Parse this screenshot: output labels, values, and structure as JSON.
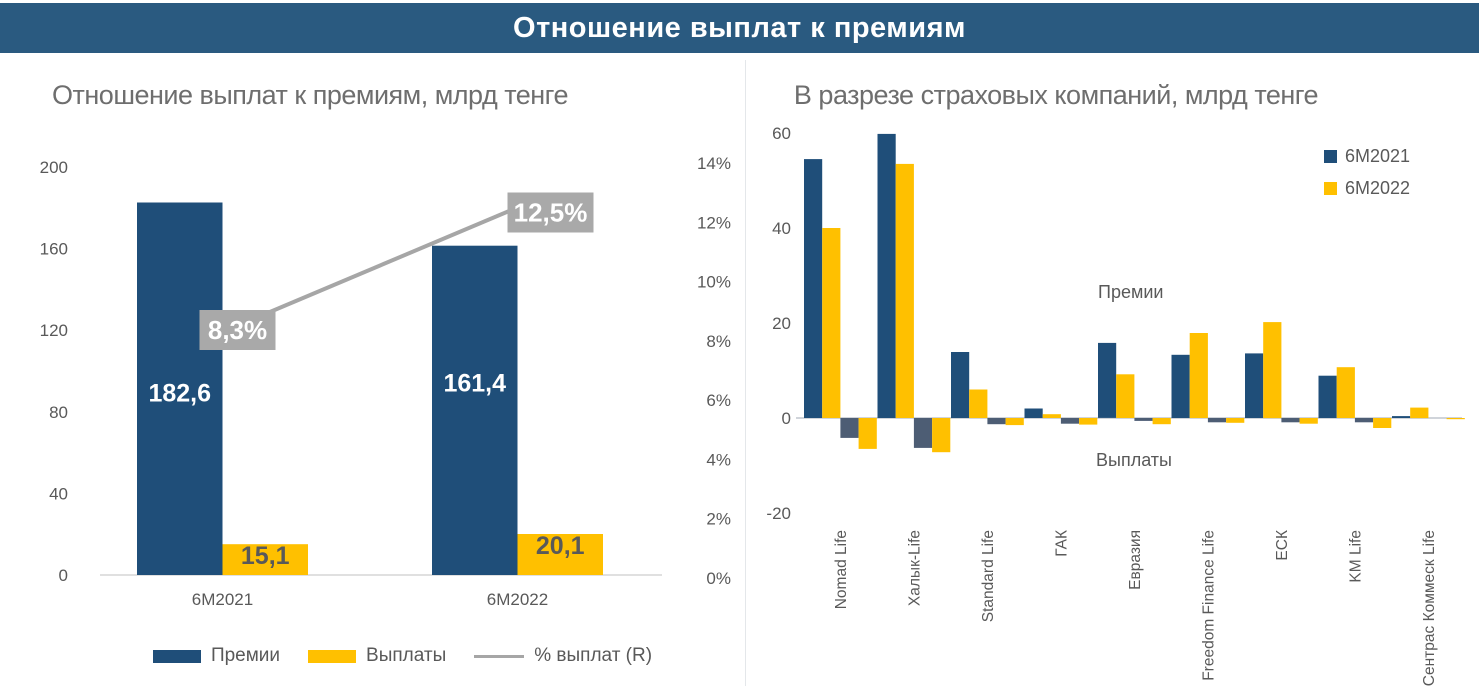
{
  "banner": {
    "title": "Отношение выплат к премиям"
  },
  "colors": {
    "banner_bg": "#2A5A80",
    "blue": "#1F4E79",
    "slate_negative": "#4D5D74",
    "yellow": "#FFC000",
    "gray_line": "#A6A6A6",
    "label_box": "#A9A9A9",
    "axis_text": "#595959",
    "title_text": "#6E6E6E",
    "baseline": "#D6D6D6"
  },
  "chart_data": [
    {
      "type": "bar",
      "subtype": "combo-bar-line",
      "title": "Отношение выплат к премиям, млрд тенге",
      "categories": [
        "6М2021",
        "6М2022"
      ],
      "series": [
        {
          "name": "Премии",
          "kind": "bar",
          "values": [
            182.6,
            161.4
          ],
          "labels": [
            "182,6",
            "161,4"
          ],
          "color": "#1F4E79",
          "label_color": "#FFFFFF"
        },
        {
          "name": "Выплаты",
          "kind": "bar",
          "values": [
            15.1,
            20.1
          ],
          "labels": [
            "15,1",
            "20,1"
          ],
          "color": "#FFC000",
          "label_color": "#595959"
        },
        {
          "name": "% выплат (R)",
          "kind": "line",
          "axis": "right",
          "values_pct": [
            8.3,
            12.5
          ],
          "labels": [
            "8,3%",
            "12,5%"
          ],
          "color": "#A6A6A6"
        }
      ],
      "left_axis": {
        "min": 0,
        "max": 200,
        "ticks": [
          "0",
          "40",
          "80",
          "120",
          "160",
          "200"
        ]
      },
      "right_axis": {
        "min_pct": 0,
        "max_pct": 14,
        "ticks": [
          "0%",
          "2%",
          "4%",
          "6%",
          "8%",
          "10%",
          "12%",
          "14%"
        ]
      },
      "legend_position": "bottom",
      "grid": false
    },
    {
      "type": "bar",
      "subtype": "grouped-positive-negative",
      "title": "В разрезе страховых компаний, млрд тенге",
      "categories": [
        "Nomad Life",
        "Халык-Life",
        "Standard Life",
        "ГАК",
        "Евразия",
        "Freedom Finance Life",
        "ЕСК",
        "KM Life",
        "Сентрас Коммеск Life"
      ],
      "series": [
        {
          "name": "6М2021",
          "color": "#1F4E79",
          "negative_color": "#4D5D74",
          "premiums": [
            54.5,
            59.8,
            13.9,
            2.0,
            15.8,
            13.3,
            13.6,
            8.9,
            0.4
          ],
          "payments": [
            -4.2,
            -6.3,
            -1.3,
            -1.2,
            -0.6,
            -0.9,
            -0.9,
            -0.9,
            0
          ]
        },
        {
          "name": "6М2022",
          "color": "#FFC000",
          "negative_color": "#FFC000",
          "premiums": [
            40.0,
            53.5,
            6.0,
            0.8,
            9.2,
            17.9,
            20.2,
            10.7,
            2.2
          ],
          "payments": [
            -6.5,
            -7.2,
            -1.5,
            -1.4,
            -1.3,
            -1.0,
            -1.2,
            -2.1,
            -0.1
          ]
        }
      ],
      "y_axis": {
        "min": -20,
        "max": 60,
        "ticks": [
          "60",
          "40",
          "20",
          "0",
          "-20"
        ]
      },
      "annotations": [
        {
          "text": "Премии"
        },
        {
          "text": "Выплаты"
        }
      ],
      "legend_position": "top-right",
      "grid": false
    }
  ]
}
